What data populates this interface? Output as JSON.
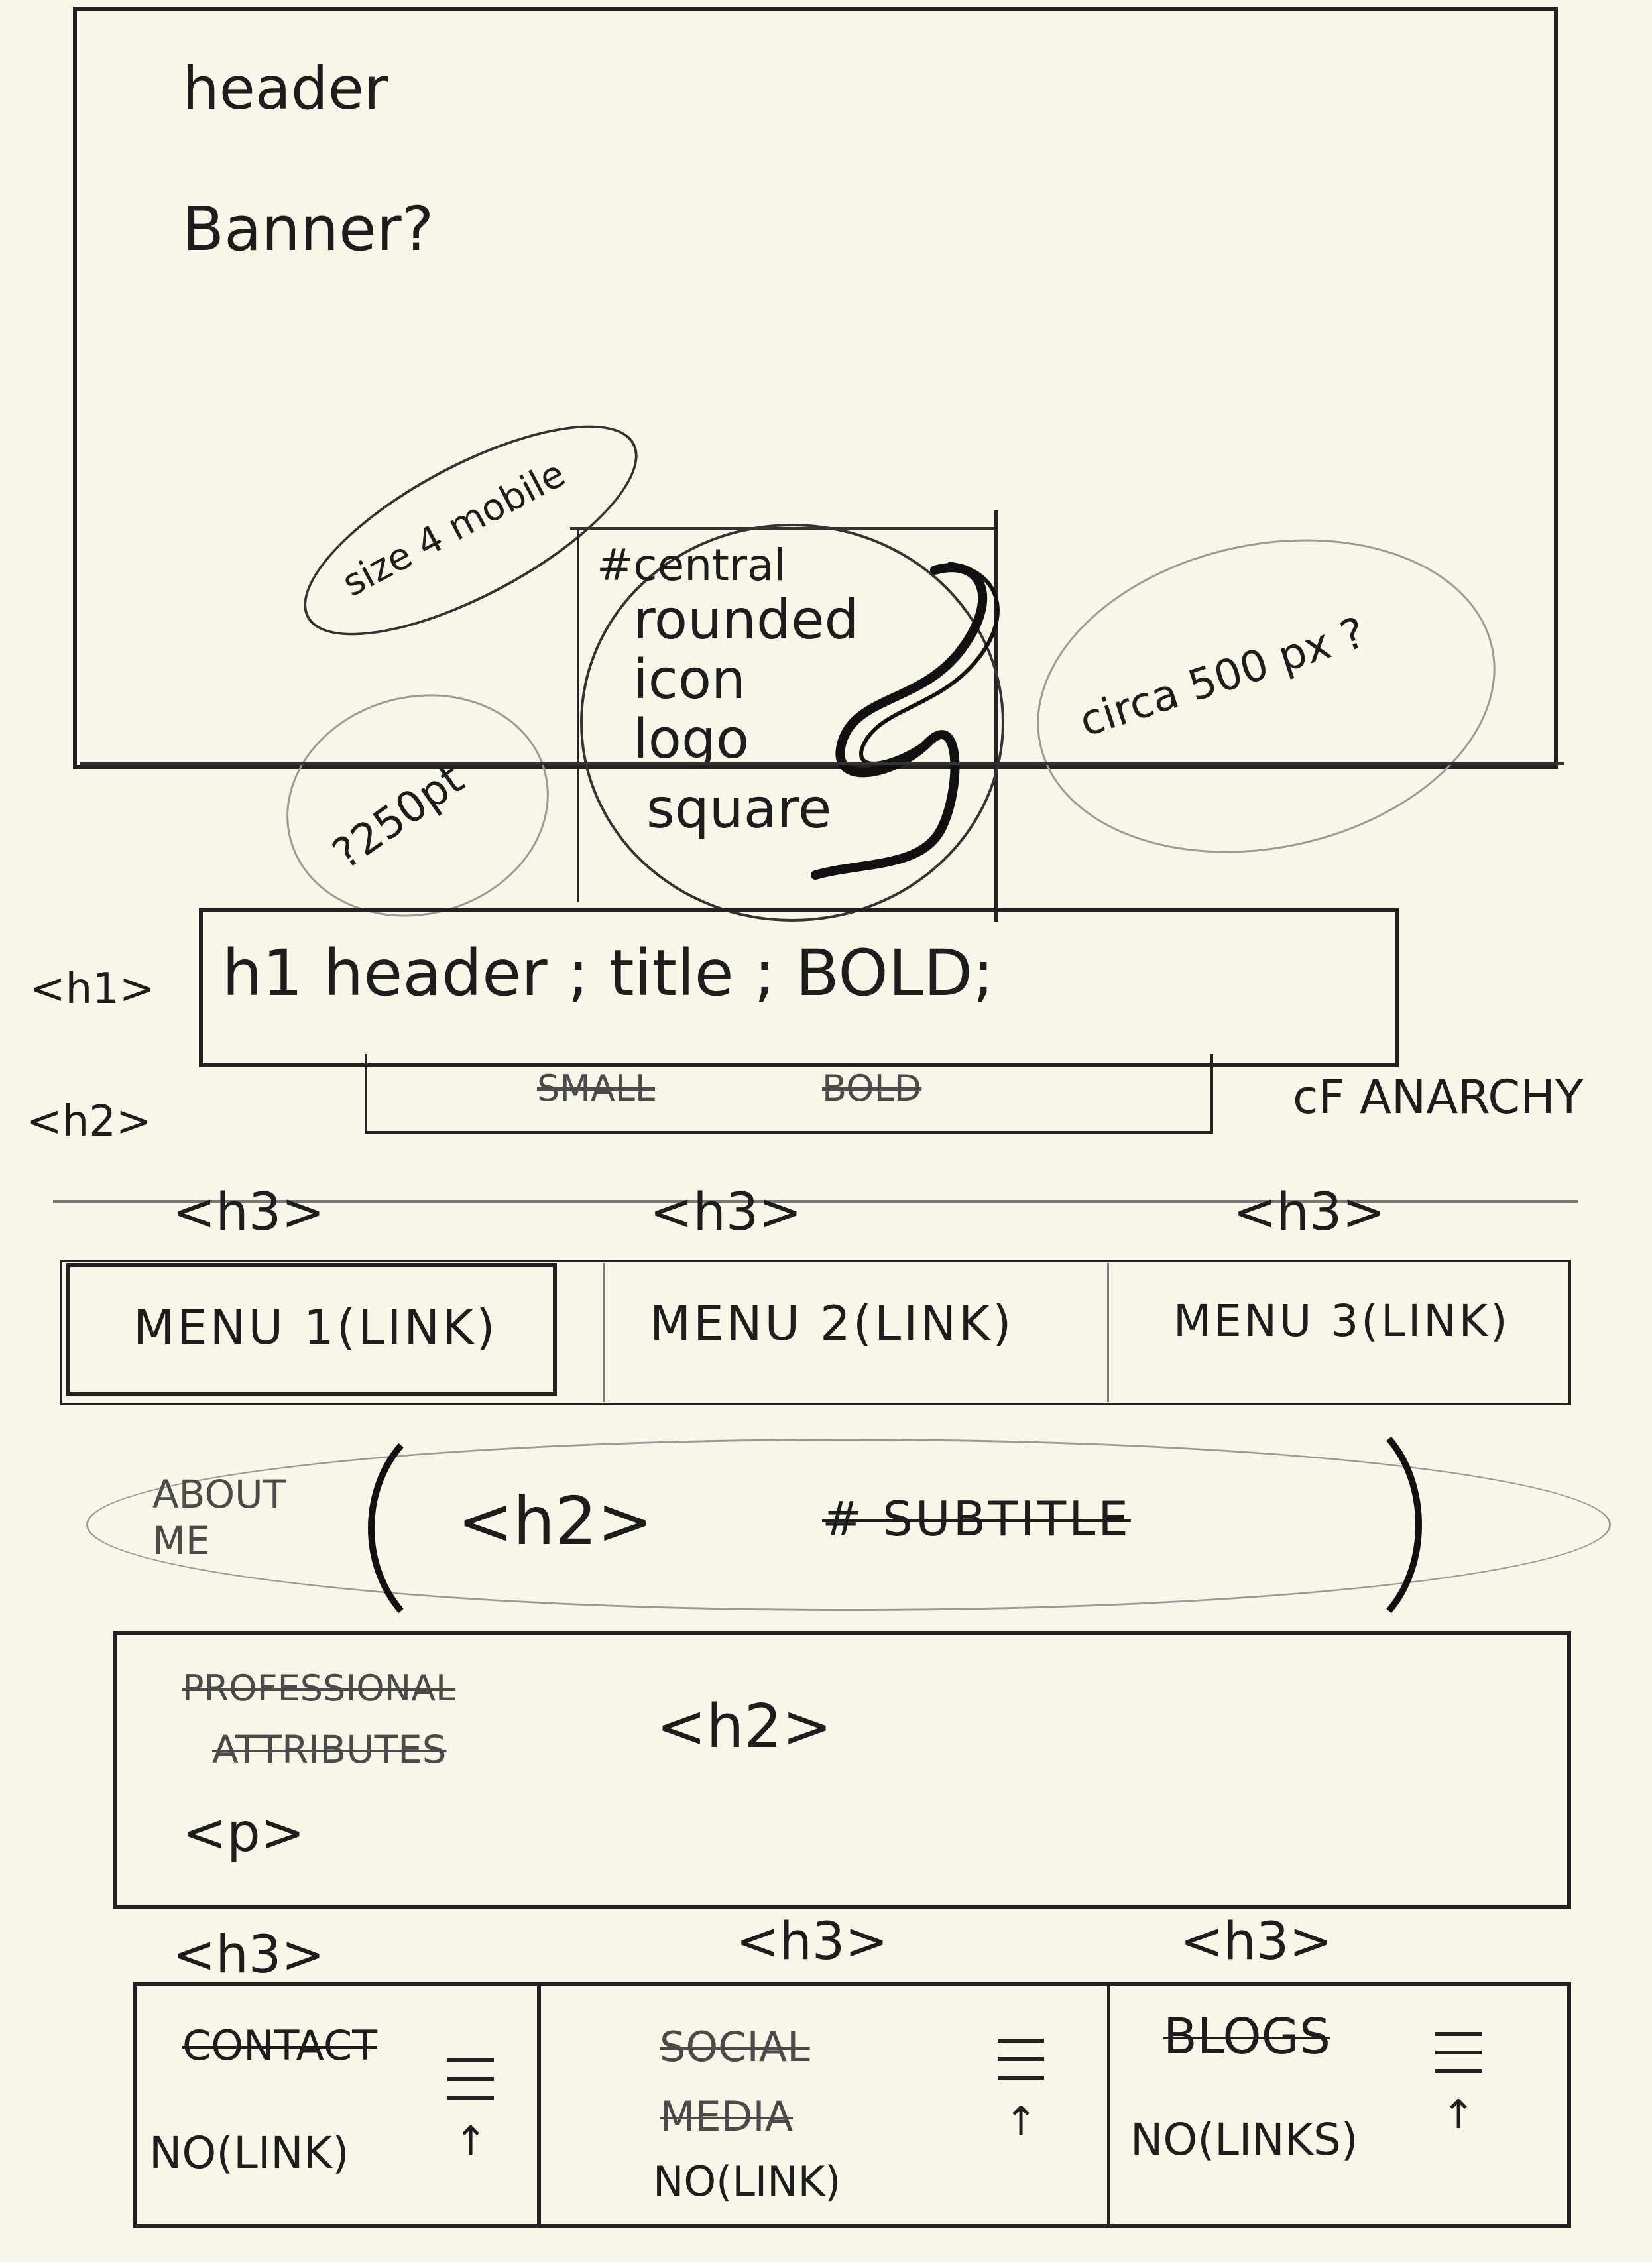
{
  "header_box": {
    "label": "header",
    "banner": "Banner?"
  },
  "notes": {
    "size_mobile": "size 4 mobile",
    "size_250": "?250pt",
    "circa_500": "circa 500 px ?",
    "anarchy": "cF ANARCHY"
  },
  "logo": {
    "text": [
      "#central",
      "rounded",
      "icon",
      "logo",
      "square"
    ]
  },
  "h1_row": {
    "tag": "<h1>",
    "text": "h1 header ; title ; BOLD;"
  },
  "h2_row": {
    "tag": "<h2>",
    "struck_left": "SMALL",
    "struck_right": "BOLD"
  },
  "menu": {
    "h3_tags": [
      "<h3>",
      "<h3>",
      "<h3>"
    ],
    "items": [
      "MENU 1(LINK)",
      "MENU 2(LINK)",
      "MENU 3(LINK)"
    ]
  },
  "about": {
    "label": "ABOUT ME",
    "tag": "<h2>",
    "subtitle": "# SUBTITLE"
  },
  "professional": {
    "label_1": "PROFESSIONAL",
    "label_2": "ATTRIBUTES",
    "h2_tag": "<h2>",
    "p_tag": "<p>"
  },
  "footer": {
    "h3_tags": [
      "<h3>",
      "<h3>",
      "<h3>"
    ],
    "cols": [
      {
        "title": "CONTACT",
        "note": "NO(LINK)"
      },
      {
        "title": "SOCIAL MEDIA",
        "note": "NO(LINK)"
      },
      {
        "title": "BLOGS",
        "note": "NO(LINKS)"
      }
    ]
  }
}
